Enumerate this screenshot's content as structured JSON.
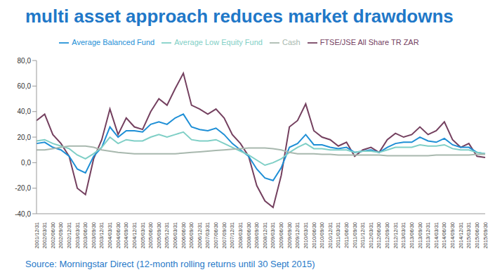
{
  "chart_data": {
    "type": "line",
    "title": "multi asset approach reduces market drawdowns",
    "source": "Source: Morningstar Direct (12-month rolling returns until 30 Sept 2015)",
    "categories": [
      "2001/12/31",
      "2002/03/31",
      "2002/06/30",
      "2002/09/30",
      "2002/12/31",
      "2003/03/31",
      "2003/06/30",
      "2003/09/30",
      "2003/12/31",
      "2004/03/31",
      "2004/06/30",
      "2004/09/30",
      "2004/12/31",
      "2005/03/31",
      "2005/06/30",
      "2005/09/30",
      "2005/12/31",
      "2006/03/31",
      "2006/06/30",
      "2006/09/30",
      "2006/12/31",
      "2007/03/31",
      "2007/06/30",
      "2007/09/30",
      "2007/12/31",
      "2008/03/31",
      "2008/06/30",
      "2008/09/30",
      "2008/12/31",
      "2009/03/31",
      "2009/06/30",
      "2009/09/30",
      "2009/12/31",
      "2010/03/31",
      "2010/06/30",
      "2010/09/30",
      "2010/12/31",
      "2011/03/31",
      "2011/06/30",
      "2011/09/30",
      "2011/12/31",
      "2012/03/31",
      "2012/06/30",
      "2012/09/30",
      "2012/12/31",
      "2013/03/31",
      "2013/06/30",
      "2013/09/30",
      "2013/12/31",
      "2014/03/31",
      "2014/06/30",
      "2014/09/30",
      "2014/12/31",
      "2015/03/31",
      "2015/06/30",
      "2015/09/30"
    ],
    "series": [
      {
        "name": "FTSE/JSE All Share TR ZAR",
        "color": "#74405f",
        "values": [
          33,
          38,
          22,
          15,
          5,
          -20,
          -25,
          3,
          18,
          42,
          22,
          35,
          28,
          26,
          40,
          50,
          45,
          58,
          70,
          45,
          42,
          38,
          42,
          35,
          22,
          15,
          5,
          -18,
          -30,
          -35,
          -10,
          28,
          33,
          46,
          25,
          20,
          18,
          13,
          16,
          5,
          10,
          12,
          8,
          18,
          23,
          20,
          22,
          28,
          22,
          25,
          32,
          18,
          12,
          15,
          5,
          4
        ]
      },
      {
        "name": "Average Balanced Fund",
        "color": "#1e8fd6",
        "values": [
          15,
          16,
          12,
          10,
          5,
          -5,
          -8,
          5,
          12,
          28,
          20,
          25,
          25,
          24,
          30,
          32,
          30,
          35,
          38,
          28,
          26,
          25,
          27,
          22,
          15,
          10,
          5,
          -5,
          -12,
          -14,
          -4,
          12,
          15,
          22,
          14,
          14,
          12,
          11,
          12,
          8,
          9,
          10,
          8,
          12,
          15,
          16,
          16,
          20,
          17,
          16,
          19,
          14,
          12,
          12,
          8,
          7
        ]
      },
      {
        "name": "Average Low Equity Fund",
        "color": "#7fcfc6",
        "values": [
          17,
          18,
          15,
          13,
          11,
          6,
          3,
          7,
          12,
          20,
          15,
          18,
          17,
          17,
          20,
          22,
          20,
          22,
          24,
          18,
          17,
          17,
          18,
          15,
          12,
          9,
          6,
          2,
          -2,
          0,
          3,
          8,
          12,
          15,
          11,
          11,
          10,
          10,
          10,
          8,
          9,
          9,
          8,
          10,
          12,
          12,
          12,
          14,
          13,
          13,
          14,
          11,
          10,
          10,
          8,
          7
        ]
      },
      {
        "name": "Cash",
        "color": "#a8b8ae",
        "values": [
          10,
          10,
          11,
          12,
          13,
          13,
          13,
          12,
          10,
          9,
          8,
          7.5,
          7,
          7,
          7,
          7,
          7,
          7,
          7.5,
          8,
          8.5,
          9,
          9.5,
          10,
          10.5,
          11,
          11.5,
          11.5,
          11.5,
          11,
          10,
          8,
          7,
          7,
          7,
          6.5,
          6.5,
          6,
          6,
          6,
          6,
          6,
          6,
          5.5,
          5.5,
          5.5,
          5.5,
          5.5,
          5.5,
          6,
          6,
          6,
          6,
          6,
          6.5,
          6.5
        ]
      }
    ],
    "ylim": [
      -40,
      80
    ],
    "yticks": [
      {
        "value": -40,
        "label": "-40,0"
      },
      {
        "value": -20,
        "label": "-20,0"
      },
      {
        "value": 0,
        "label": "0,0"
      },
      {
        "value": 20,
        "label": "20,0"
      },
      {
        "value": 40,
        "label": "40,0"
      },
      {
        "value": 60,
        "label": "60,0"
      },
      {
        "value": 80,
        "label": "80,0"
      }
    ],
    "grid": false,
    "legend": "top"
  }
}
